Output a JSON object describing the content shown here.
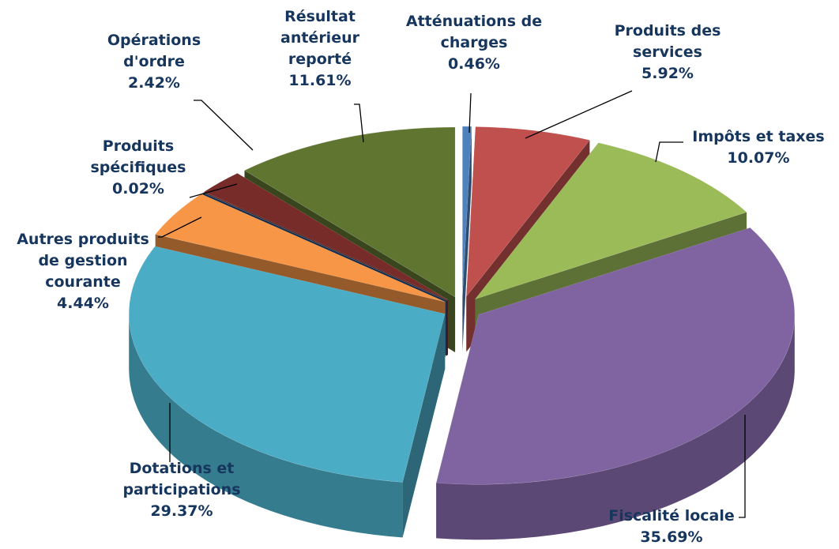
{
  "chart_data": {
    "type": "pie",
    "categories": [
      "Atténuations de charges",
      "Produits des services",
      "Impôts et taxes",
      "Fiscalité locale",
      "Dotations et participations",
      "Autres produits de gestion courante",
      "Produits spécifiques",
      "Opérations d'ordre",
      "Résultat antérieur reporté"
    ],
    "values": [
      0.46,
      5.92,
      10.07,
      35.69,
      29.37,
      4.44,
      0.02,
      2.42,
      11.61
    ],
    "value_labels": [
      "0.46%",
      "5.92%",
      "10.07%",
      "35.69%",
      "29.37%",
      "4.44%",
      "0.02%",
      "2.42%",
      "11.61%"
    ],
    "colors": [
      "#4f81bd",
      "#c0504d",
      "#9bbb59",
      "#8064a2",
      "#4bacc6",
      "#f79646",
      "#1f497d",
      "#772c2a",
      "#5f7530"
    ]
  }
}
